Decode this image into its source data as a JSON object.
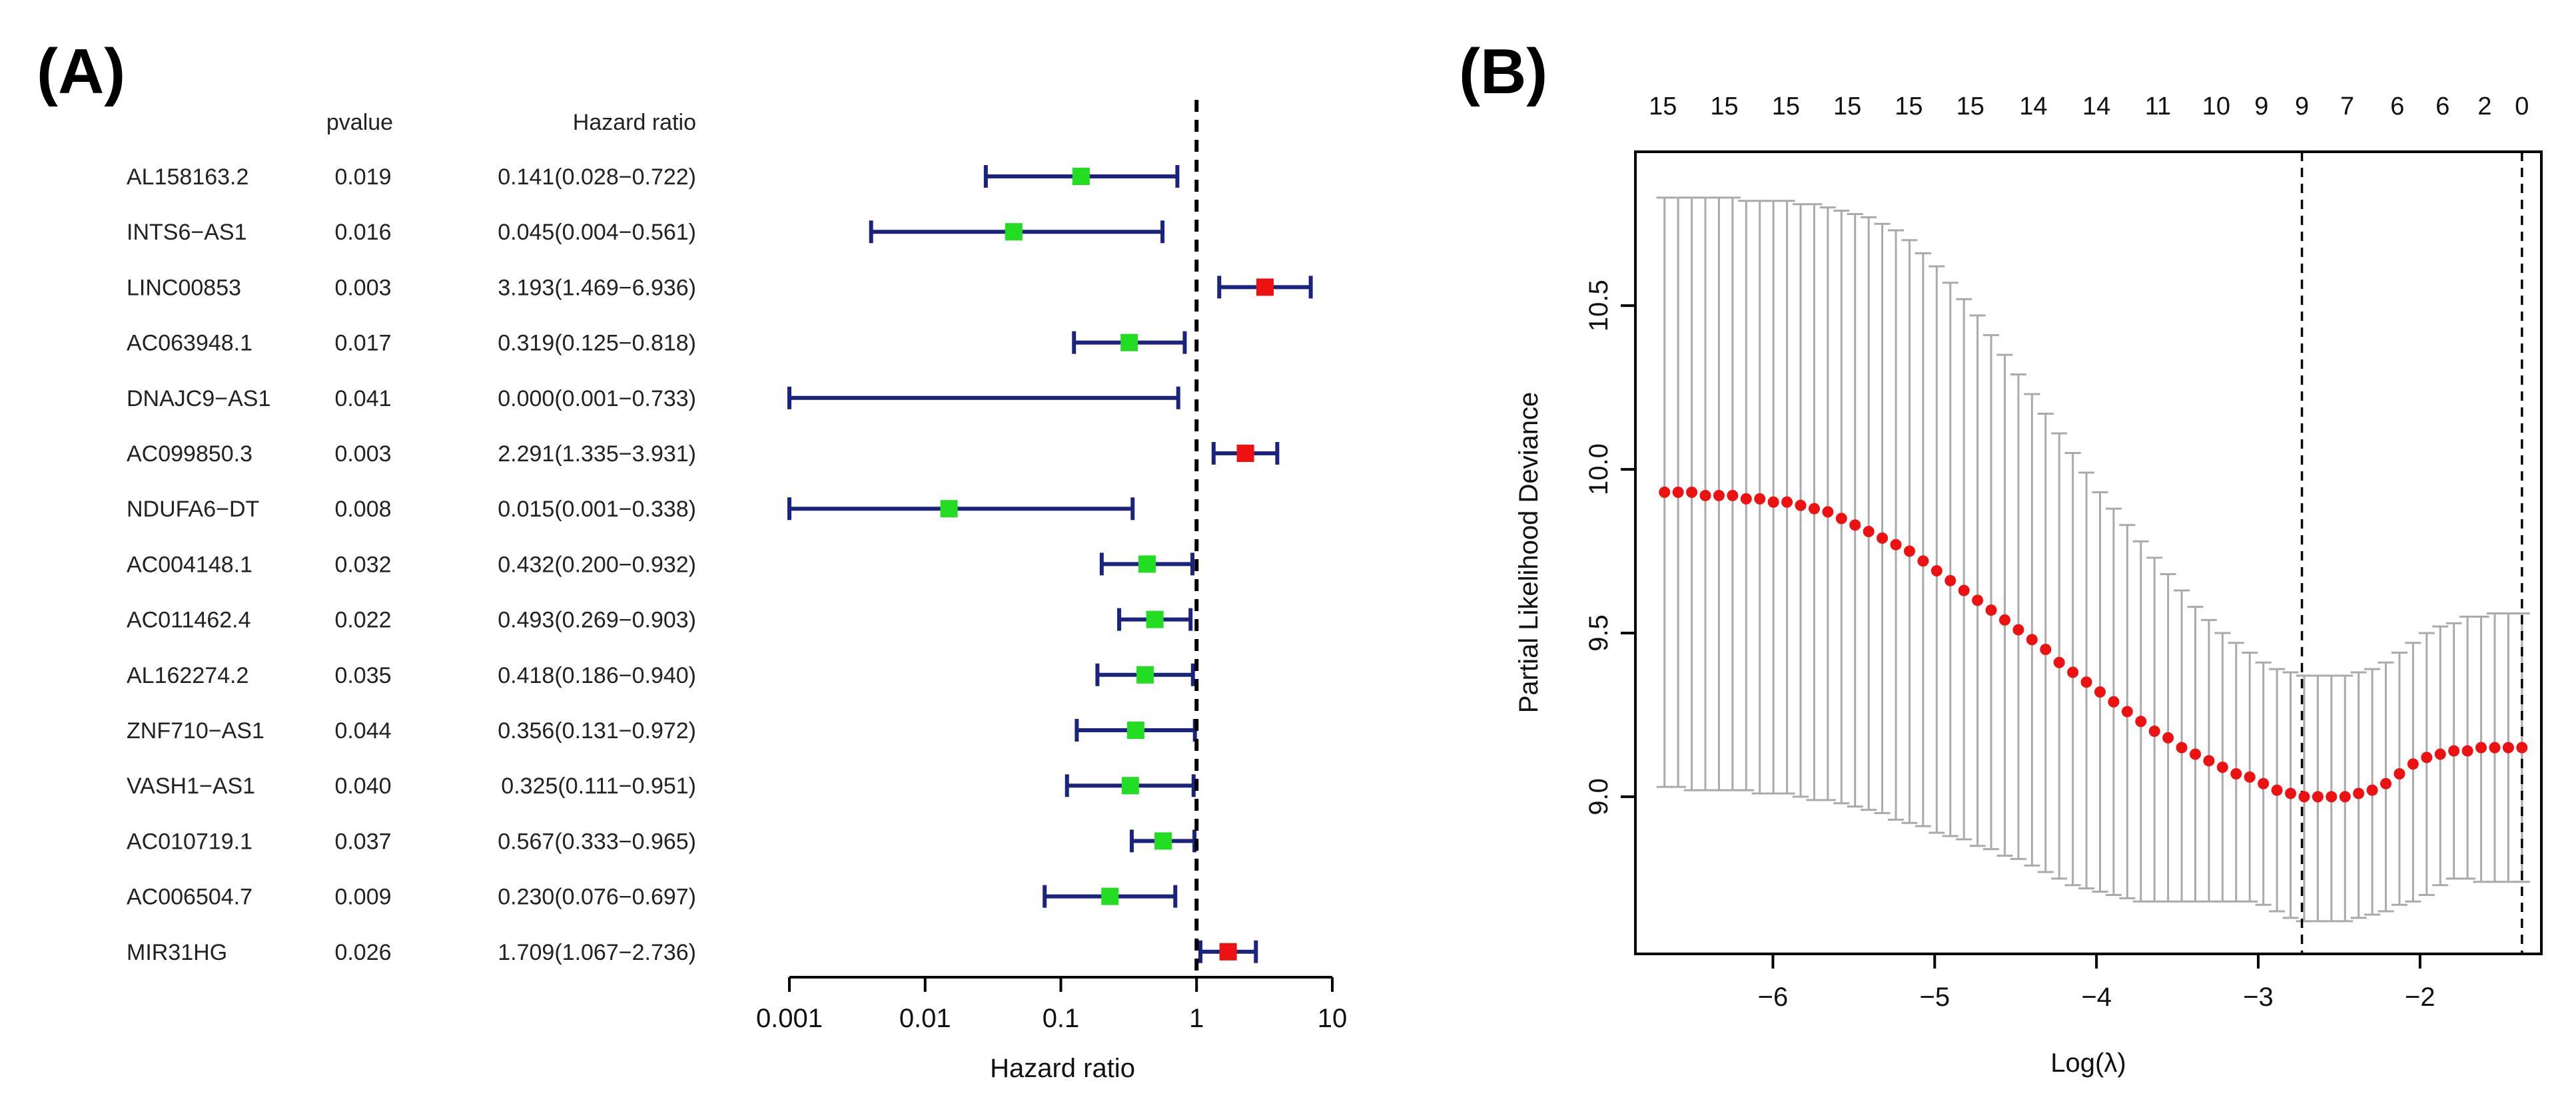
{
  "panels": {
    "a_label": "(A)",
    "b_label": "(B)"
  },
  "chart_data": [
    {
      "type": "forest",
      "column_headers": {
        "pvalue": "pvalue",
        "hr": "Hazard ratio"
      },
      "xlabel": "Hazard ratio",
      "xscale": "log",
      "xlim": [
        0.001,
        10
      ],
      "xticks": [
        "0.001",
        "0.01",
        "0.1",
        "1",
        "10"
      ],
      "xtick_values": [
        0.001,
        0.01,
        0.1,
        1,
        10
      ],
      "reference_line": 1,
      "colors": {
        "protective": "#22dd22",
        "risk": "#ee1111",
        "ci": "#1a237e"
      },
      "rows": [
        {
          "gene": "AL158163.2",
          "pvalue": "0.019",
          "hr_text": "0.141(0.028−0.722)",
          "hr": 0.141,
          "lo": 0.028,
          "hi": 0.722
        },
        {
          "gene": "INTS6−AS1",
          "pvalue": "0.016",
          "hr_text": "0.045(0.004−0.561)",
          "hr": 0.045,
          "lo": 0.004,
          "hi": 0.561
        },
        {
          "gene": "LINC00853",
          "pvalue": "0.003",
          "hr_text": "3.193(1.469−6.936)",
          "hr": 3.193,
          "lo": 1.469,
          "hi": 6.936
        },
        {
          "gene": "AC063948.1",
          "pvalue": "0.017",
          "hr_text": "0.319(0.125−0.818)",
          "hr": 0.319,
          "lo": 0.125,
          "hi": 0.818
        },
        {
          "gene": "DNAJC9−AS1",
          "pvalue": "0.041",
          "hr_text": "0.000(0.001−0.733)",
          "hr": 0.0001,
          "lo": 0.001,
          "hi": 0.733
        },
        {
          "gene": "AC099850.3",
          "pvalue": "0.003",
          "hr_text": "2.291(1.335−3.931)",
          "hr": 2.291,
          "lo": 1.335,
          "hi": 3.931
        },
        {
          "gene": "NDUFA6−DT",
          "pvalue": "0.008",
          "hr_text": "0.015(0.001−0.338)",
          "hr": 0.015,
          "lo": 0.001,
          "hi": 0.338
        },
        {
          "gene": "AC004148.1",
          "pvalue": "0.032",
          "hr_text": "0.432(0.200−0.932)",
          "hr": 0.432,
          "lo": 0.2,
          "hi": 0.932
        },
        {
          "gene": "AC011462.4",
          "pvalue": "0.022",
          "hr_text": "0.493(0.269−0.903)",
          "hr": 0.493,
          "lo": 0.269,
          "hi": 0.903
        },
        {
          "gene": "AL162274.2",
          "pvalue": "0.035",
          "hr_text": "0.418(0.186−0.940)",
          "hr": 0.418,
          "lo": 0.186,
          "hi": 0.94
        },
        {
          "gene": "ZNF710−AS1",
          "pvalue": "0.044",
          "hr_text": "0.356(0.131−0.972)",
          "hr": 0.356,
          "lo": 0.131,
          "hi": 0.972
        },
        {
          "gene": "VASH1−AS1",
          "pvalue": "0.040",
          "hr_text": "0.325(0.111−0.951)",
          "hr": 0.325,
          "lo": 0.111,
          "hi": 0.951
        },
        {
          "gene": "AC010719.1",
          "pvalue": "0.037",
          "hr_text": "0.567(0.333−0.965)",
          "hr": 0.567,
          "lo": 0.333,
          "hi": 0.965
        },
        {
          "gene": "AC006504.7",
          "pvalue": "0.009",
          "hr_text": "0.230(0.076−0.697)",
          "hr": 0.23,
          "lo": 0.076,
          "hi": 0.697
        },
        {
          "gene": "MIR31HG",
          "pvalue": "0.026",
          "hr_text": "1.709(1.067−2.736)",
          "hr": 1.709,
          "lo": 1.067,
          "hi": 2.736
        }
      ]
    },
    {
      "type": "scatter",
      "subtype": "lasso-cv-error-bars",
      "xlabel": "Log(λ)",
      "ylabel": "Partial Likelihood Deviance",
      "xlim": [
        -6.85,
        -1.25
      ],
      "ylim": [
        8.52,
        10.97
      ],
      "xticks": [
        -6,
        -5,
        -4,
        -3,
        -2
      ],
      "xtick_labels": [
        "−6",
        "−5",
        "−4",
        "−3",
        "−2"
      ],
      "yticks": [
        9.0,
        9.5,
        10.0,
        10.5
      ],
      "ytick_labels": [
        "9.0",
        "9.5",
        "10.0",
        "10.5"
      ],
      "top_axis_labels": [
        "15",
        "15",
        "15",
        "15",
        "15",
        "15",
        "14",
        "14",
        "11",
        "10",
        "9",
        "9",
        "7",
        "6",
        "6",
        "2",
        "0"
      ],
      "top_axis_x": [
        -6.68,
        -6.3,
        -5.92,
        -5.54,
        -5.16,
        -4.78,
        -4.39,
        -4.0,
        -3.62,
        -3.26,
        -2.98,
        -2.73,
        -2.45,
        -2.14,
        -1.86,
        -1.6,
        -1.37
      ],
      "vlines": [
        -2.73,
        -1.37
      ],
      "point_color": "#ee1111",
      "errorbar_color": "#aaaaaa",
      "lambda_min": -6.67,
      "lambda_max": -1.37,
      "points": [
        [
          9.93,
          9.03,
          10.83
        ],
        [
          9.93,
          9.03,
          10.83
        ],
        [
          9.93,
          9.02,
          10.83
        ],
        [
          9.92,
          9.02,
          10.83
        ],
        [
          9.92,
          9.02,
          10.83
        ],
        [
          9.92,
          9.02,
          10.83
        ],
        [
          9.91,
          9.02,
          10.82
        ],
        [
          9.91,
          9.01,
          10.82
        ],
        [
          9.9,
          9.01,
          10.82
        ],
        [
          9.9,
          9.01,
          10.82
        ],
        [
          9.89,
          9.0,
          10.81
        ],
        [
          9.88,
          8.99,
          10.81
        ],
        [
          9.87,
          8.99,
          10.8
        ],
        [
          9.85,
          8.98,
          10.79
        ],
        [
          9.83,
          8.97,
          10.78
        ],
        [
          9.81,
          8.96,
          10.77
        ],
        [
          9.79,
          8.95,
          10.75
        ],
        [
          9.77,
          8.93,
          10.73
        ],
        [
          9.75,
          8.92,
          10.7
        ],
        [
          9.72,
          8.91,
          10.66
        ],
        [
          9.69,
          8.89,
          10.62
        ],
        [
          9.66,
          8.88,
          10.57
        ],
        [
          9.63,
          8.87,
          10.52
        ],
        [
          9.6,
          8.85,
          10.47
        ],
        [
          9.57,
          8.84,
          10.41
        ],
        [
          9.54,
          8.82,
          10.35
        ],
        [
          9.51,
          8.81,
          10.29
        ],
        [
          9.48,
          8.79,
          10.23
        ],
        [
          9.45,
          8.77,
          10.17
        ],
        [
          9.41,
          8.75,
          10.11
        ],
        [
          9.38,
          8.73,
          10.05
        ],
        [
          9.35,
          8.72,
          9.99
        ],
        [
          9.32,
          8.71,
          9.93
        ],
        [
          9.29,
          8.7,
          9.88
        ],
        [
          9.26,
          8.69,
          9.83
        ],
        [
          9.23,
          8.68,
          9.78
        ],
        [
          9.2,
          8.68,
          9.73
        ],
        [
          9.18,
          8.68,
          9.68
        ],
        [
          9.15,
          8.68,
          9.63
        ],
        [
          9.13,
          8.68,
          9.58
        ],
        [
          9.11,
          8.68,
          9.54
        ],
        [
          9.09,
          8.68,
          9.5
        ],
        [
          9.07,
          8.68,
          9.47
        ],
        [
          9.06,
          8.68,
          9.44
        ],
        [
          9.04,
          8.67,
          9.41
        ],
        [
          9.02,
          8.65,
          9.39
        ],
        [
          9.01,
          8.63,
          9.38
        ],
        [
          9.0,
          8.62,
          9.37
        ],
        [
          9.0,
          8.62,
          9.37
        ],
        [
          9.0,
          8.62,
          9.37
        ],
        [
          9.0,
          8.62,
          9.37
        ],
        [
          9.01,
          8.63,
          9.38
        ],
        [
          9.02,
          8.64,
          9.39
        ],
        [
          9.04,
          8.65,
          9.41
        ],
        [
          9.07,
          8.67,
          9.44
        ],
        [
          9.1,
          8.68,
          9.47
        ],
        [
          9.12,
          8.7,
          9.5
        ],
        [
          9.13,
          8.73,
          9.52
        ],
        [
          9.14,
          8.75,
          9.53
        ],
        [
          9.14,
          8.75,
          9.55
        ],
        [
          9.15,
          8.74,
          9.55
        ],
        [
          9.15,
          8.74,
          9.56
        ],
        [
          9.15,
          8.74,
          9.56
        ],
        [
          9.15,
          8.74,
          9.56
        ]
      ]
    }
  ]
}
